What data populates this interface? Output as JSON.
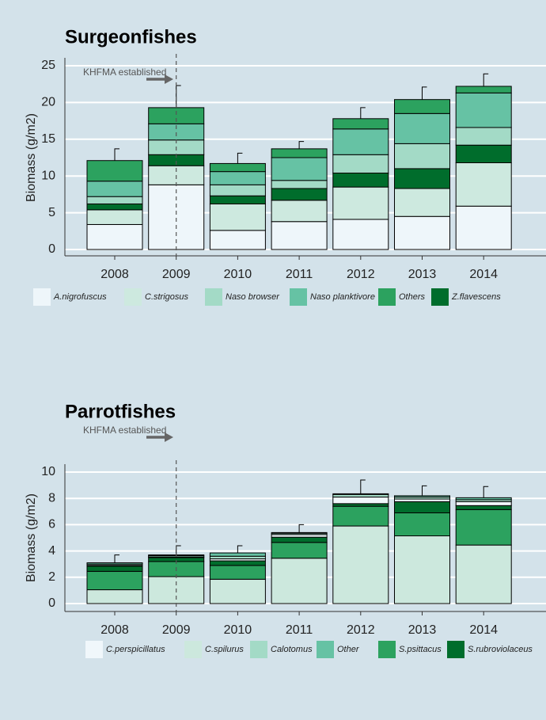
{
  "chart_data": [
    {
      "type": "stacked_bar",
      "title": "Surgeonfishes",
      "y_label": "Biomass (g/m2)",
      "categories": [
        "2008",
        "2009",
        "2010",
        "2011",
        "2012",
        "2013",
        "2014"
      ],
      "series": [
        {
          "name": "A.nigrofuscus",
          "color": "#eef6fa",
          "values": [
            3.4,
            8.8,
            2.6,
            3.8,
            4.1,
            4.5,
            5.9
          ]
        },
        {
          "name": "C.strigosus",
          "color": "#cde9df",
          "values": [
            2.0,
            2.6,
            3.6,
            2.9,
            4.4,
            3.8,
            5.9
          ]
        },
        {
          "name": "Naso browser",
          "color": "#a3dac6",
          "values": [
            1.0,
            2.0,
            1.5,
            1.1,
            2.5,
            3.4,
            2.4
          ]
        },
        {
          "name": "Naso planktivore",
          "color": "#66c2a4",
          "values": [
            2.1,
            2.2,
            1.8,
            3.1,
            3.5,
            4.1,
            4.7
          ]
        },
        {
          "name": "Others",
          "color": "#2ca25f",
          "values": [
            2.8,
            2.2,
            1.1,
            1.2,
            1.4,
            1.9,
            0.9
          ]
        },
        {
          "name": "Z.flavescens",
          "color": "#006d2c",
          "values": [
            0.8,
            1.5,
            1.1,
            1.6,
            1.9,
            2.7,
            2.4
          ]
        }
      ],
      "stack_order": [
        0,
        1,
        5,
        2,
        3,
        4
      ],
      "errors": [
        1.6,
        3.0,
        1.4,
        1.0,
        1.5,
        1.7,
        1.7
      ],
      "ylim": [
        0,
        25
      ],
      "yticks": [
        0,
        5,
        10,
        15,
        20,
        25
      ],
      "grid": true,
      "annotation": {
        "text": "KHFMA established",
        "x": "2009"
      }
    },
    {
      "type": "stacked_bar",
      "title": "Parrotfishes",
      "y_label": "Biomass (g/m2)",
      "categories": [
        "2008",
        "2009",
        "2010",
        "2011",
        "2012",
        "2013",
        "2014"
      ],
      "series": [
        {
          "name": "C.perspicillatus",
          "color": "#f0f7fb",
          "values": [
            0.05,
            0.05,
            0.15,
            0.2,
            0.5,
            0.2,
            0.3
          ]
        },
        {
          "name": "C.spilurus",
          "color": "#cce8dd",
          "values": [
            1.05,
            2.05,
            1.85,
            3.45,
            5.9,
            5.15,
            4.45
          ]
        },
        {
          "name": "Calotomus",
          "color": "#a3dac6",
          "values": [
            0.1,
            0.1,
            0.2,
            0.1,
            0.2,
            0.15,
            0.15
          ]
        },
        {
          "name": "Other",
          "color": "#66c2a4",
          "values": [
            0.1,
            0.05,
            0.25,
            0.05,
            0.05,
            0.1,
            0.15
          ]
        },
        {
          "name": "S.psittacus",
          "color": "#2ca25f",
          "values": [
            1.4,
            1.15,
            1.05,
            1.2,
            1.5,
            1.75,
            2.7
          ]
        },
        {
          "name": "S.rubroviolaceus",
          "color": "#006d2c",
          "values": [
            0.4,
            0.3,
            0.35,
            0.4,
            0.2,
            0.85,
            0.3
          ]
        }
      ],
      "stack_order": [
        1,
        4,
        5,
        0,
        2,
        3
      ],
      "errors": [
        0.6,
        0.7,
        0.55,
        0.6,
        1.05,
        0.75,
        0.85
      ],
      "ylim": [
        0,
        10
      ],
      "yticks": [
        0,
        2,
        4,
        6,
        8,
        10
      ],
      "grid": true,
      "annotation": {
        "text": "KHFMA established",
        "x": "2009"
      }
    }
  ]
}
